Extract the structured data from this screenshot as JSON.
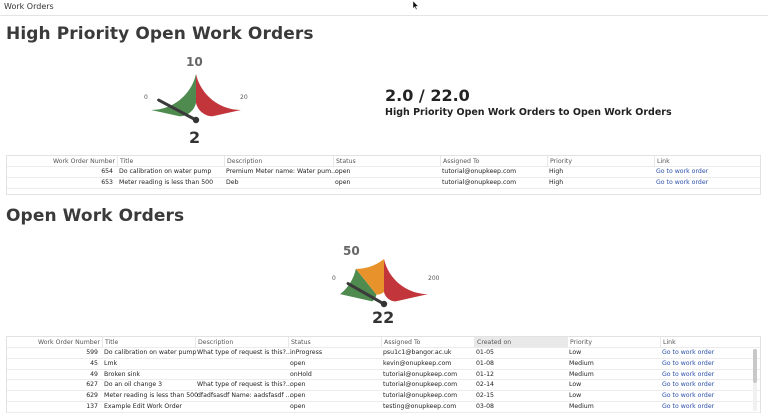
{
  "window": {
    "title": "Work Orders"
  },
  "colors": {
    "green": "#4f8a4f",
    "red": "#c2363b",
    "orange": "#e8922c",
    "link": "#2a4fa8"
  },
  "high_priority": {
    "title": "High Priority Open Work Orders",
    "gauge": {
      "min": 0,
      "max": 20,
      "target": 10,
      "value": 2,
      "min_label": "0",
      "max_label": "20",
      "target_label": "10",
      "value_label": "2"
    },
    "ratio": "2.0 / 22.0",
    "ratio_label": "High Priority Open Work Orders to Open Work Orders",
    "table": {
      "columns": [
        "Work Order Number",
        "Title",
        "Description",
        "Status",
        "Assigned To",
        "Priority",
        "Link"
      ],
      "rows": [
        [
          "654",
          "Do calibration on water pump",
          "Premium Meter name: Water pum...",
          "open",
          "tutorial@onupkeep.com",
          "High",
          "Go to work order"
        ],
        [
          "653",
          "Meter reading is less than 500",
          "Deb",
          "open",
          "tutorial@onupkeep.com",
          "High",
          "Go to work order"
        ]
      ]
    }
  },
  "open": {
    "title": "Open Work Orders",
    "gauge": {
      "min": 0,
      "max": 200,
      "target": 50,
      "value": 22,
      "min_label": "0",
      "max_label": "200",
      "target_label": "50",
      "value_label": "22"
    },
    "table": {
      "columns": [
        "Work Order Number",
        "Title",
        "Description",
        "Status",
        "Assigned To",
        "Created on",
        "Priority",
        "Link"
      ],
      "rows": [
        [
          "599",
          "Do calibration on water pump",
          "What type of request is this?...",
          "inProgress",
          "psu1c1@bangor.ac.uk",
          "01-05",
          "Low",
          "Go to work order"
        ],
        [
          "45",
          "Lmk",
          "",
          "open",
          "kevin@onupkeep.com",
          "01-08",
          "Medium",
          "Go to work order"
        ],
        [
          "49",
          "Broken sink",
          "",
          "onHold",
          "tutorial@onupkeep.com",
          "01-12",
          "Medium",
          "Go to work order"
        ],
        [
          "627",
          "Do an oil change 3",
          "What type of request is this?...",
          "open",
          "tutorial@onupkeep.com",
          "02-14",
          "Low",
          "Go to work order"
        ],
        [
          "629",
          "Meter reading is less than 500",
          "dfadfsasdf Name: aadsfasdf ...",
          "open",
          "tutorial@onupkeep.com",
          "02-15",
          "Low",
          "Go to work order"
        ],
        [
          "137",
          "Example Edit Work Order",
          "",
          "open",
          "testing@onupkeep.com",
          "03-08",
          "Medium",
          "Go to work order"
        ]
      ]
    }
  }
}
